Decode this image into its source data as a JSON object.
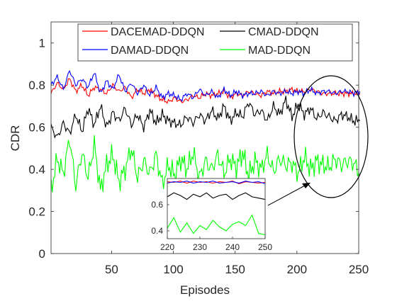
{
  "chart_data": {
    "type": "line",
    "xlabel": "Episodes",
    "ylabel": "CDR",
    "xlim": [
      1,
      250
    ],
    "ylim": [
      0,
      1.1
    ],
    "xticks": [
      50,
      100,
      150,
      200,
      250
    ],
    "yticks": [
      0,
      0.2,
      0.4,
      0.6,
      0.8,
      1
    ],
    "grid": false,
    "legend_location": "top",
    "series": [
      {
        "name": "DACEMAD-DDQN",
        "color": "#ff0000",
        "x_step": 5,
        "values": [
          0.76,
          0.81,
          0.78,
          0.83,
          0.77,
          0.8,
          0.75,
          0.79,
          0.78,
          0.76,
          0.8,
          0.77,
          0.79,
          0.74,
          0.78,
          0.76,
          0.78,
          0.75,
          0.73,
          0.72,
          0.74,
          0.72,
          0.73,
          0.75,
          0.74,
          0.76,
          0.75,
          0.76,
          0.77,
          0.74,
          0.76,
          0.75,
          0.77,
          0.76,
          0.75,
          0.77,
          0.76,
          0.77,
          0.77,
          0.78,
          0.77,
          0.77,
          0.78,
          0.77,
          0.76,
          0.76,
          0.76,
          0.76,
          0.76,
          0.76,
          0.76
        ]
      },
      {
        "name": "CMAD-DDQN",
        "color": "#000000",
        "x_step": 5,
        "values": [
          0.6,
          0.55,
          0.62,
          0.57,
          0.66,
          0.58,
          0.69,
          0.61,
          0.7,
          0.6,
          0.67,
          0.63,
          0.69,
          0.61,
          0.66,
          0.6,
          0.68,
          0.62,
          0.66,
          0.63,
          0.62,
          0.61,
          0.65,
          0.62,
          0.66,
          0.63,
          0.68,
          0.64,
          0.7,
          0.63,
          0.67,
          0.65,
          0.72,
          0.66,
          0.68,
          0.63,
          0.7,
          0.66,
          0.73,
          0.65,
          0.71,
          0.66,
          0.69,
          0.64,
          0.67,
          0.65,
          0.63,
          0.66,
          0.65,
          0.63,
          0.63
        ]
      },
      {
        "name": "DAMAD-DDQN",
        "color": "#0000ff",
        "x_step": 5,
        "values": [
          0.8,
          0.84,
          0.78,
          0.87,
          0.8,
          0.83,
          0.79,
          0.86,
          0.76,
          0.82,
          0.78,
          0.85,
          0.77,
          0.81,
          0.76,
          0.8,
          0.75,
          0.79,
          0.74,
          0.76,
          0.75,
          0.73,
          0.76,
          0.74,
          0.78,
          0.75,
          0.77,
          0.74,
          0.78,
          0.75,
          0.77,
          0.75,
          0.76,
          0.76,
          0.77,
          0.75,
          0.77,
          0.76,
          0.77,
          0.76,
          0.77,
          0.76,
          0.78,
          0.76,
          0.77,
          0.77,
          0.76,
          0.77,
          0.77,
          0.76,
          0.77
        ]
      },
      {
        "name": "MAD-DDQN",
        "color": "#00ff00",
        "x_step": 5,
        "values": [
          0.3,
          0.45,
          0.38,
          0.55,
          0.32,
          0.48,
          0.36,
          0.52,
          0.3,
          0.42,
          0.47,
          0.34,
          0.4,
          0.5,
          0.36,
          0.44,
          0.38,
          0.47,
          0.33,
          0.42,
          0.37,
          0.45,
          0.4,
          0.48,
          0.36,
          0.44,
          0.4,
          0.47,
          0.38,
          0.45,
          0.41,
          0.48,
          0.37,
          0.44,
          0.4,
          0.47,
          0.39,
          0.45,
          0.42,
          0.43,
          0.38,
          0.46,
          0.4,
          0.44,
          0.42,
          0.41,
          0.45,
          0.42,
          0.44,
          0.43,
          0.38
        ]
      }
    ],
    "inset": {
      "xlim": [
        220,
        250
      ],
      "xticks": [
        220,
        230,
        240,
        250
      ],
      "ytick_labels": [
        "0.4",
        "0.6"
      ],
      "x_values": [
        220,
        222,
        224,
        226,
        228,
        230,
        232,
        234,
        236,
        238,
        240,
        242,
        244,
        246,
        248,
        250
      ],
      "series": [
        {
          "series": "DACEMAD-DDQN",
          "values": [
            0.775,
            0.77,
            0.78,
            0.765,
            0.78,
            0.77,
            0.775,
            0.765,
            0.775,
            0.77,
            0.78,
            0.76,
            0.775,
            0.77,
            0.765,
            0.77
          ]
        },
        {
          "series": "DAMAD-DDQN",
          "values": [
            0.765,
            0.775,
            0.77,
            0.78,
            0.765,
            0.775,
            0.77,
            0.78,
            0.765,
            0.77,
            0.775,
            0.765,
            0.78,
            0.77,
            0.775,
            0.76
          ]
        },
        {
          "series": "CMAD-DDQN",
          "values": [
            0.66,
            0.69,
            0.67,
            0.64,
            0.68,
            0.66,
            0.69,
            0.65,
            0.67,
            0.68,
            0.64,
            0.67,
            0.69,
            0.66,
            0.65,
            0.64
          ]
        },
        {
          "series": "MAD-DDQN",
          "values": [
            0.42,
            0.5,
            0.39,
            0.46,
            0.38,
            0.44,
            0.41,
            0.48,
            0.43,
            0.4,
            0.45,
            0.47,
            0.44,
            0.52,
            0.38,
            0.37
          ]
        }
      ]
    },
    "annotation": "ellipse around episodes 210–250 with an arrow pointing to the inset"
  }
}
